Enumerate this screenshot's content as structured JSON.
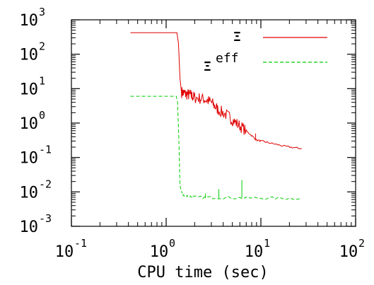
{
  "chart_data": {
    "type": "line",
    "xlabel": "CPU time (sec)",
    "ylabel": "",
    "x_scale": "log",
    "y_scale": "log",
    "xlim": [
      0.1,
      100
    ],
    "ylim": [
      0.001,
      1000
    ],
    "x_ticks": [
      {
        "value": 0.1,
        "base": "10",
        "exp": "-1"
      },
      {
        "value": 1,
        "base": "10",
        "exp": "0"
      },
      {
        "value": 10,
        "base": "10",
        "exp": "1"
      },
      {
        "value": 100,
        "base": "10",
        "exp": "2"
      }
    ],
    "y_ticks": [
      {
        "value": 0.001,
        "base": "10",
        "exp": "-3"
      },
      {
        "value": 0.01,
        "base": "10",
        "exp": "-2"
      },
      {
        "value": 0.1,
        "base": "10",
        "exp": "-1"
      },
      {
        "value": 1,
        "base": "10",
        "exp": "0"
      },
      {
        "value": 10,
        "base": "10",
        "exp": "1"
      },
      {
        "value": 100,
        "base": "10",
        "exp": "2"
      },
      {
        "value": 1000,
        "base": "10",
        "exp": "3"
      }
    ],
    "grid": false,
    "legend_position": "top-right",
    "series": [
      {
        "name": "Ξ",
        "color": "#e00000",
        "dash": "solid",
        "points": [
          [
            0.42,
            420
          ],
          [
            1.3,
            420
          ],
          [
            1.35,
            200
          ],
          [
            1.4,
            20
          ],
          [
            1.45,
            8
          ],
          [
            1.6,
            7
          ],
          [
            1.8,
            6.5
          ],
          [
            2.0,
            5.5
          ],
          [
            2.5,
            5
          ],
          [
            3.0,
            4
          ],
          [
            3.5,
            2.5
          ],
          [
            4.5,
            1.6
          ],
          [
            5.5,
            1.0
          ],
          [
            7.0,
            0.6
          ],
          [
            9.0,
            0.32
          ],
          [
            12.0,
            0.27
          ],
          [
            18.0,
            0.21
          ],
          [
            27.0,
            0.18
          ]
        ]
      },
      {
        "name": "Ξeff",
        "name_main": "Ξ",
        "name_sup": "eff",
        "color": "#00cc00",
        "dash": "dashed",
        "points": [
          [
            0.42,
            6
          ],
          [
            1.28,
            6
          ],
          [
            1.32,
            4
          ],
          [
            1.36,
            0.4
          ],
          [
            1.4,
            0.015
          ],
          [
            1.5,
            0.008
          ],
          [
            2.0,
            0.007
          ],
          [
            4.0,
            0.0068
          ],
          [
            10.0,
            0.0066
          ],
          [
            27.0,
            0.0065
          ]
        ]
      }
    ]
  }
}
